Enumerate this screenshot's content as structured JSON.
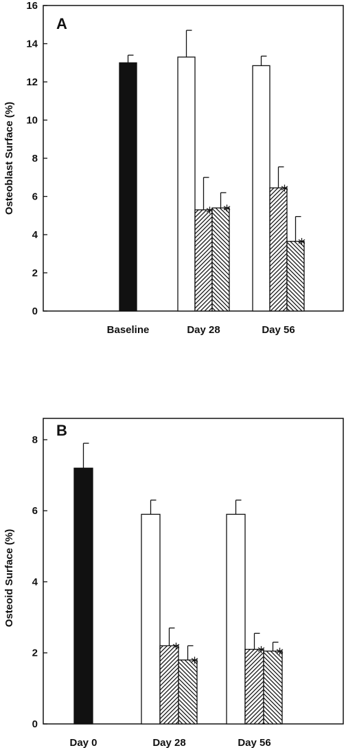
{
  "chart_data": [
    {
      "type": "bar",
      "panel": "A",
      "ylabel": "Osteoblast Surface (%)",
      "ylim": [
        0,
        16
      ],
      "yticks": [
        0,
        2,
        4,
        6,
        8,
        10,
        12,
        14,
        16
      ],
      "groups": [
        {
          "label": "Baseline",
          "bars": [
            {
              "fill": "solid",
              "value": 13.0,
              "error": 0.4,
              "star": false
            }
          ]
        },
        {
          "label": "Day 28",
          "bars": [
            {
              "fill": "open",
              "value": 13.3,
              "error": 1.4,
              "star": false
            },
            {
              "fill": "hatch-up",
              "value": 5.3,
              "error": 1.7,
              "star": true
            },
            {
              "fill": "hatch-down",
              "value": 5.4,
              "error": 0.8,
              "star": true
            }
          ]
        },
        {
          "label": "Day 56",
          "bars": [
            {
              "fill": "open",
              "value": 12.85,
              "error": 0.5,
              "star": false
            },
            {
              "fill": "hatch-up",
              "value": 6.45,
              "error": 1.1,
              "star": true
            },
            {
              "fill": "hatch-down",
              "value": 3.65,
              "error": 1.3,
              "star": true
            }
          ]
        }
      ]
    },
    {
      "type": "bar",
      "panel": "B",
      "ylabel": "Osteoid Surface (%)",
      "ylim": [
        0,
        8.6
      ],
      "yticks": [
        0,
        2,
        4,
        6,
        8
      ],
      "groups": [
        {
          "label": "Day 0",
          "bars": [
            {
              "fill": "solid",
              "value": 7.2,
              "error": 0.7,
              "star": false
            }
          ]
        },
        {
          "label": "Day 28",
          "bars": [
            {
              "fill": "open",
              "value": 5.9,
              "error": 0.4,
              "star": false
            },
            {
              "fill": "hatch-up",
              "value": 2.2,
              "error": 0.5,
              "star": true
            },
            {
              "fill": "hatch-down",
              "value": 1.8,
              "error": 0.4,
              "star": true
            }
          ]
        },
        {
          "label": "Day 56",
          "bars": [
            {
              "fill": "open",
              "value": 5.9,
              "error": 0.4,
              "star": false
            },
            {
              "fill": "hatch-up",
              "value": 2.1,
              "error": 0.45,
              "star": true
            },
            {
              "fill": "hatch-down",
              "value": 2.05,
              "error": 0.25,
              "star": true
            }
          ]
        }
      ]
    }
  ],
  "star_symbol": "*"
}
